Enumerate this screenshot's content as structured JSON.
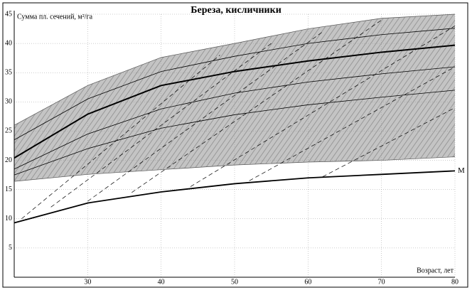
{
  "chart_data": {
    "type": "line",
    "title": "Береза, кисличники",
    "y_label": "Сумма пл. сечений, м²/га",
    "x_label": "Возраст, лет",
    "xlim": [
      20,
      80
    ],
    "ylim": [
      0,
      45
    ],
    "xticks": [
      30,
      40,
      50,
      60,
      70,
      80
    ],
    "yticks": [
      5,
      10,
      15,
      20,
      25,
      30,
      35,
      40,
      45
    ],
    "grid": true,
    "band": {
      "x": [
        20,
        30,
        40,
        50,
        60,
        70,
        80
      ],
      "upper": [
        26,
        32.8,
        37.6,
        40,
        42.5,
        44.3,
        45
      ],
      "lower": [
        16.4,
        17.6,
        18.4,
        19.2,
        19.7,
        20,
        20.6
      ],
      "color": "#b0b0b0"
    },
    "series": [
      {
        "x": [
          20,
          30,
          40,
          50,
          60,
          70,
          80
        ],
        "values": [
          20.4,
          27.9,
          32.8,
          35.2,
          37,
          38.5,
          39.7
        ],
        "color": "#000000",
        "width": 2
      },
      {
        "x": [
          20,
          30,
          40,
          50,
          60,
          70,
          80
        ],
        "values": [
          23.5,
          30.5,
          35.2,
          37.8,
          40,
          41.5,
          42.6
        ],
        "color": "#000000",
        "width": 0.8
      },
      {
        "x": [
          20,
          30,
          40,
          50,
          60,
          70,
          80
        ],
        "values": [
          18.5,
          24.5,
          28.8,
          31.5,
          33.4,
          34.8,
          36
        ],
        "color": "#000000",
        "width": 0.8
      },
      {
        "x": [
          20,
          30,
          40,
          50,
          60,
          70,
          80
        ],
        "values": [
          17.5,
          22,
          25.5,
          27.8,
          29.5,
          30.8,
          32
        ],
        "color": "#000000",
        "width": 0.8
      },
      {
        "name": "M",
        "x": [
          20,
          30,
          40,
          50,
          60,
          70,
          80
        ],
        "values": [
          9.3,
          12.7,
          14.6,
          16,
          17,
          17.6,
          18.2
        ],
        "color": "#000000",
        "width": 1.8
      }
    ],
    "dashed": [
      {
        "x": [
          21,
          48
        ],
        "values": [
          10,
          38
        ]
      },
      {
        "x": [
          25,
          55
        ],
        "values": [
          12,
          40
        ]
      },
      {
        "x": [
          30,
          62
        ],
        "values": [
          13,
          42
        ]
      },
      {
        "x": [
          36,
          70
        ],
        "values": [
          14.5,
          44
        ]
      },
      {
        "x": [
          44,
          80
        ],
        "values": [
          15.5,
          43
        ]
      },
      {
        "x": [
          52,
          80
        ],
        "values": [
          16.5,
          36
        ]
      },
      {
        "x": [
          62,
          80
        ],
        "values": [
          17.2,
          29
        ]
      }
    ]
  }
}
